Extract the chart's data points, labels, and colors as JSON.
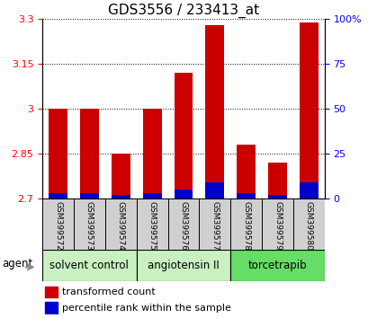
{
  "title": "GDS3556 / 233413_at",
  "samples": [
    "GSM399572",
    "GSM399573",
    "GSM399574",
    "GSM399575",
    "GSM399576",
    "GSM399577",
    "GSM399578",
    "GSM399579",
    "GSM399580"
  ],
  "transformed_count": [
    3.0,
    3.0,
    2.85,
    3.0,
    3.12,
    3.28,
    2.88,
    2.82,
    3.29
  ],
  "percentile_rank": [
    3,
    3,
    2,
    3,
    5,
    9,
    3,
    2,
    9
  ],
  "ymin": 2.7,
  "ymax": 3.3,
  "yticks": [
    2.7,
    2.85,
    3.0,
    3.15,
    3.3
  ],
  "right_yticks": [
    0,
    25,
    50,
    75,
    100
  ],
  "groups": [
    {
      "label": "solvent control",
      "indices": [
        0,
        1,
        2
      ],
      "color": "#c8f0c0"
    },
    {
      "label": "angiotensin II",
      "indices": [
        3,
        4,
        5
      ],
      "color": "#c8f0c0"
    },
    {
      "label": "torcetrapib",
      "indices": [
        6,
        7,
        8
      ],
      "color": "#66dd66"
    }
  ],
  "bar_color_red": "#cc0000",
  "bar_color_blue": "#0000cc",
  "agent_label": "agent",
  "legend_red": "transformed count",
  "legend_blue": "percentile rank within the sample",
  "title_fontsize": 11,
  "tick_fontsize": 8,
  "label_fontsize": 8.5,
  "sample_fontsize": 6.5
}
